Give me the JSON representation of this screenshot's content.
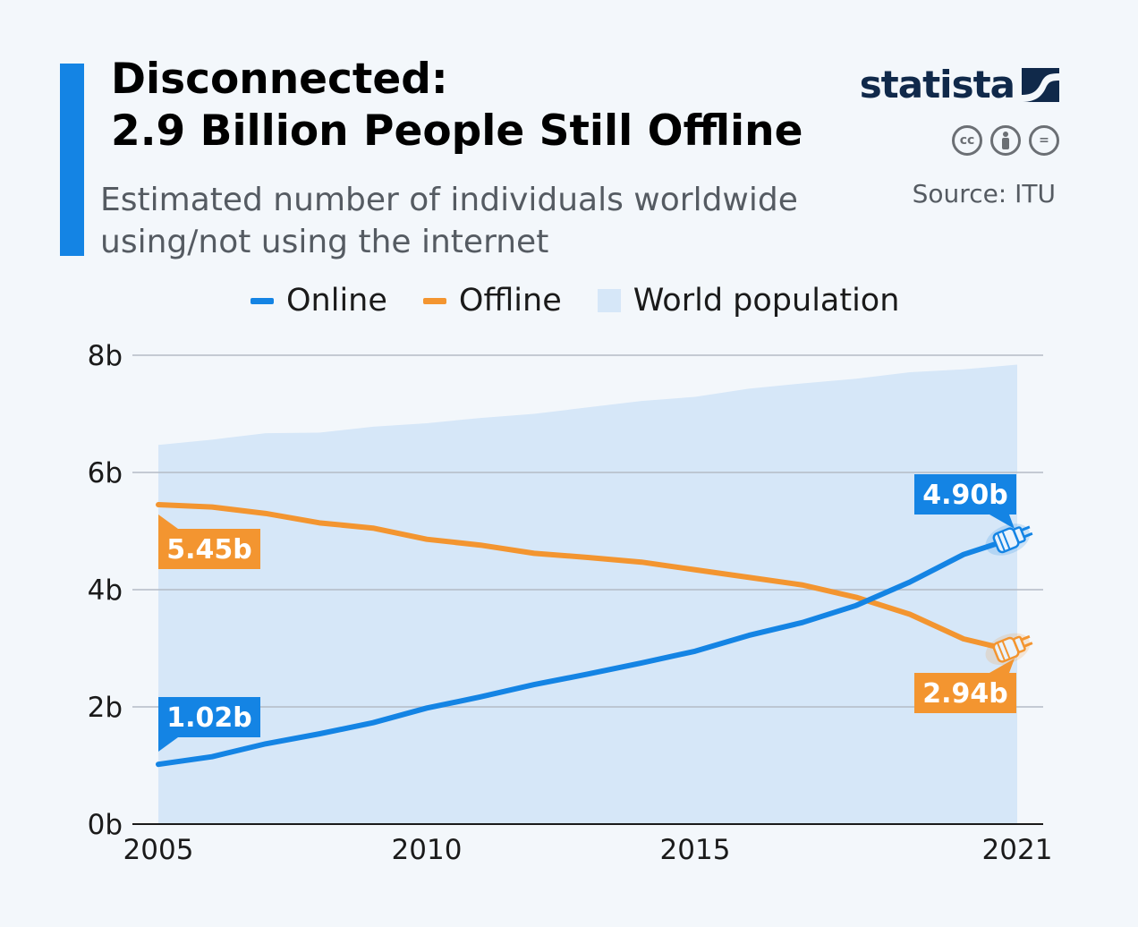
{
  "header": {
    "title_line1": "Disconnected:",
    "title_line2": "2.9 Billion People Still Offline",
    "subtitle": "Estimated number of individuals worldwide using/not using the internet",
    "source": "Source: ITU",
    "logo_text": "statista",
    "license_icons": [
      "cc-icon",
      "by-icon",
      "nd-icon"
    ],
    "license_cc_label": "cc",
    "license_nd_label": "="
  },
  "colors": {
    "online": "#1484e4",
    "offline": "#f39530",
    "population": "#d6e7f8",
    "accent": "#1484e4",
    "logo": "#10294a"
  },
  "chart_data": {
    "type": "line",
    "title": "Disconnected: 2.9 Billion People Still Offline",
    "xlabel": "",
    "ylabel": "",
    "ylim": [
      0,
      8
    ],
    "xlim": [
      2005,
      2021
    ],
    "x_ticks": [
      "2005",
      "2010",
      "2015",
      "2021"
    ],
    "y_ticks": [
      "0b",
      "2b",
      "4b",
      "6b",
      "8b"
    ],
    "x": [
      2005,
      2006,
      2007,
      2008,
      2009,
      2010,
      2011,
      2012,
      2013,
      2014,
      2015,
      2016,
      2017,
      2018,
      2019,
      2020,
      2021
    ],
    "series": [
      {
        "name": "Online",
        "type": "line",
        "values": [
          1.02,
          1.15,
          1.37,
          1.54,
          1.73,
          1.98,
          2.17,
          2.38,
          2.56,
          2.75,
          2.95,
          3.22,
          3.44,
          3.73,
          4.13,
          4.6,
          4.9
        ]
      },
      {
        "name": "Offline",
        "type": "line",
        "values": [
          5.45,
          5.41,
          5.3,
          5.14,
          5.05,
          4.86,
          4.76,
          4.62,
          4.55,
          4.47,
          4.34,
          4.21,
          4.08,
          3.87,
          3.58,
          3.16,
          2.94
        ]
      },
      {
        "name": "World population",
        "type": "area",
        "values": [
          6.47,
          6.56,
          6.67,
          6.68,
          6.78,
          6.84,
          6.93,
          7.0,
          7.11,
          7.22,
          7.29,
          7.43,
          7.52,
          7.6,
          7.71,
          7.76,
          7.84
        ]
      }
    ],
    "legend": [
      "Online",
      "Offline",
      "World population"
    ],
    "legend_position": "top",
    "grid": true,
    "annotations": [
      {
        "series": "Online",
        "x": 2005,
        "label": "1.02b"
      },
      {
        "series": "Online",
        "x": 2021,
        "label": "4.90b"
      },
      {
        "series": "Offline",
        "x": 2005,
        "label": "5.45b"
      },
      {
        "series": "Offline",
        "x": 2021,
        "label": "2.94b"
      }
    ]
  }
}
